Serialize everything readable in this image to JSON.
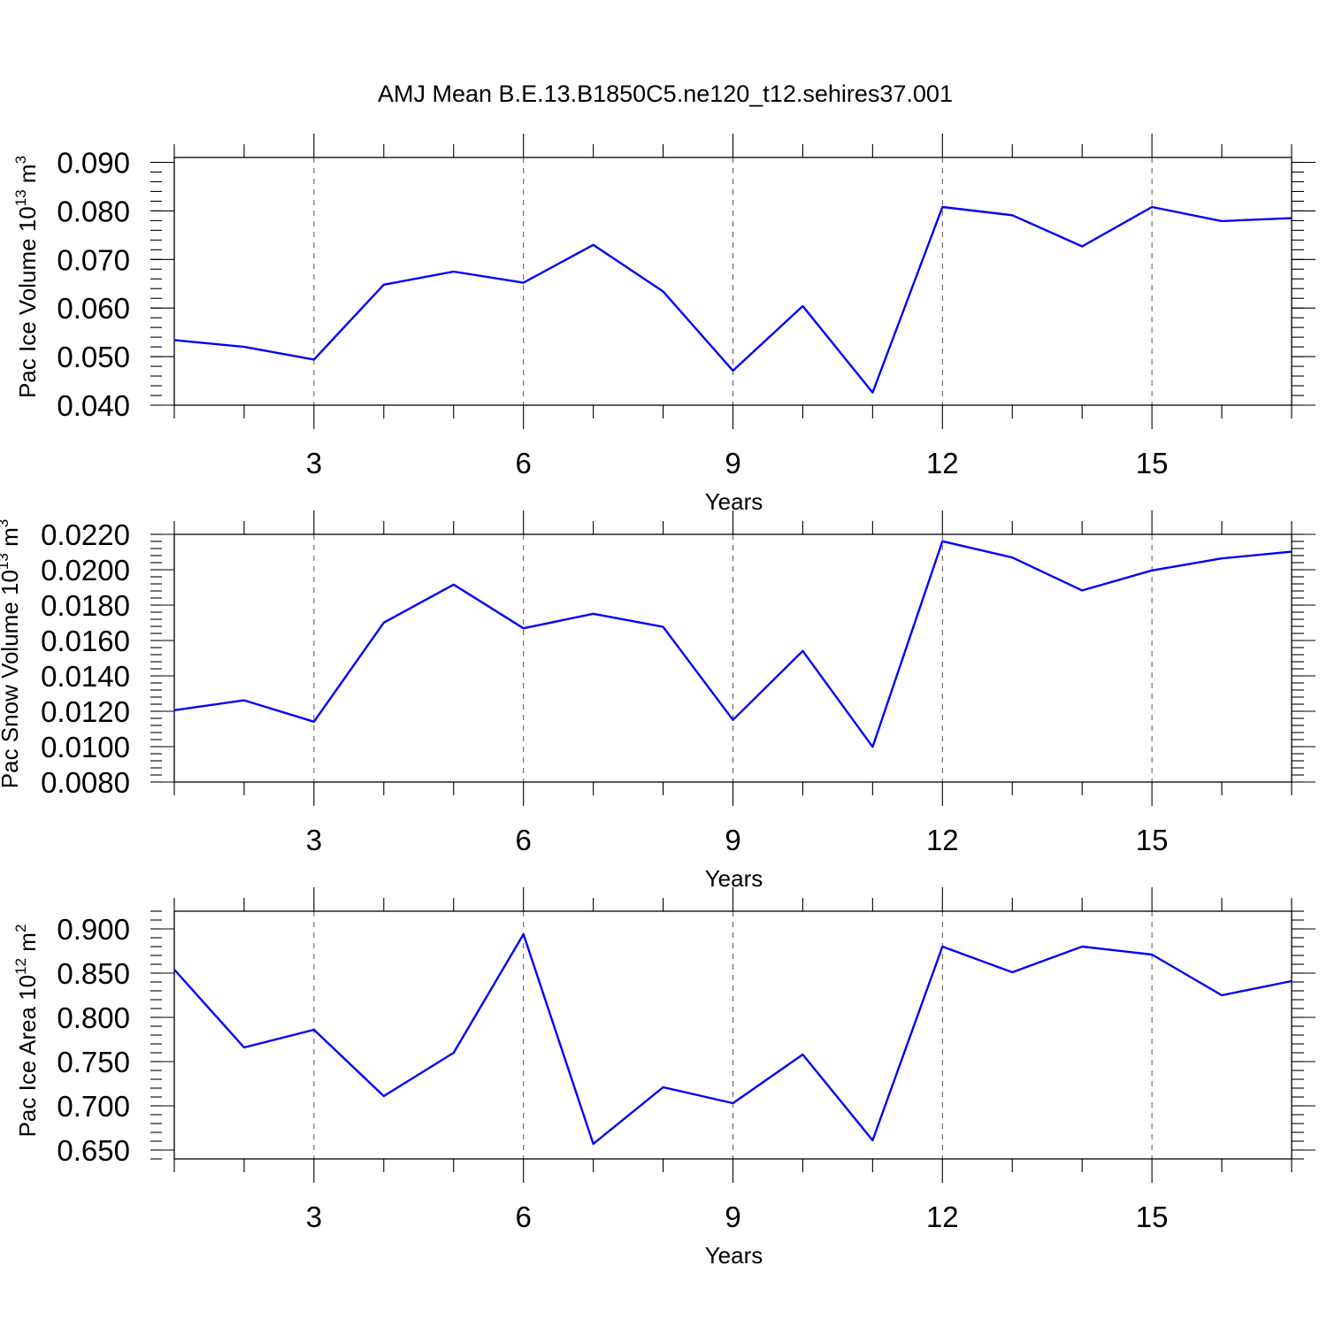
{
  "title": "AMJ Mean B.E.13.B1850C5.ne120_t12.sehires37.001",
  "line_color": "#0000ff",
  "chart_data": [
    {
      "type": "line",
      "id": "ice-volume",
      "xlabel": "Years",
      "ylabel": {
        "text": "Pac Ice Volume 10",
        "exp": "13",
        "unit": " m",
        "unit_exp": "3"
      },
      "xlim": [
        1,
        17
      ],
      "ylim": [
        0.04,
        0.091
      ],
      "x_ticks": [
        3,
        6,
        9,
        12,
        15
      ],
      "x_tick_labels": [
        "3",
        "6",
        "9",
        "12",
        "15"
      ],
      "y_ticks": [
        0.04,
        0.05,
        0.06,
        0.07,
        0.08,
        0.09
      ],
      "y_tick_labels": [
        "0.040",
        "0.050",
        "0.060",
        "0.070",
        "0.080",
        "0.090"
      ],
      "y_minor_step": 0.002,
      "x": [
        1,
        2,
        3,
        4,
        5,
        6,
        7,
        8,
        9,
        10,
        11,
        12,
        13,
        14,
        15,
        16,
        17
      ],
      "series": [
        {
          "name": "Pac Ice Volume",
          "values": [
            0.0534,
            0.052,
            0.0494,
            0.0648,
            0.0675,
            0.0652,
            0.073,
            0.0634,
            0.0471,
            0.0604,
            0.0426,
            0.0808,
            0.0791,
            0.0727,
            0.0808,
            0.0779,
            0.0785
          ]
        }
      ]
    },
    {
      "type": "line",
      "id": "snow-volume",
      "xlabel": "Years",
      "ylabel": {
        "text": "Pac Snow Volume 10",
        "exp": "13",
        "unit": " m",
        "unit_exp": "3"
      },
      "xlim": [
        1,
        17
      ],
      "ylim": [
        0.008,
        0.022
      ],
      "x_ticks": [
        3,
        6,
        9,
        12,
        15
      ],
      "x_tick_labels": [
        "3",
        "6",
        "9",
        "12",
        "15"
      ],
      "y_ticks": [
        0.008,
        0.01,
        0.012,
        0.014,
        0.016,
        0.018,
        0.02,
        0.022
      ],
      "y_tick_labels": [
        "0.0080",
        "0.0100",
        "0.0120",
        "0.0140",
        "0.0160",
        "0.0180",
        "0.0200",
        "0.0220"
      ],
      "y_minor_step": 0.0004,
      "x": [
        1,
        2,
        3,
        4,
        5,
        6,
        7,
        8,
        9,
        10,
        11,
        12,
        13,
        14,
        15,
        16,
        17
      ],
      "series": [
        {
          "name": "Pac Snow Volume",
          "values": [
            0.01206,
            0.01262,
            0.01141,
            0.01701,
            0.01916,
            0.01669,
            0.01751,
            0.01677,
            0.01151,
            0.01541,
            0.00999,
            0.02161,
            0.02069,
            0.01883,
            0.01996,
            0.02064,
            0.02102
          ]
        }
      ]
    },
    {
      "type": "line",
      "id": "ice-area",
      "xlabel": "Years",
      "ylabel": {
        "text": "Pac Ice Area 10",
        "exp": "12",
        "unit": " m",
        "unit_exp": "2"
      },
      "xlim": [
        1,
        17
      ],
      "ylim": [
        0.64,
        0.92
      ],
      "x_ticks": [
        3,
        6,
        9,
        12,
        15
      ],
      "x_tick_labels": [
        "3",
        "6",
        "9",
        "12",
        "15"
      ],
      "y_ticks": [
        0.65,
        0.7,
        0.75,
        0.8,
        0.85,
        0.9
      ],
      "y_tick_labels": [
        "0.650",
        "0.700",
        "0.750",
        "0.800",
        "0.850",
        "0.900"
      ],
      "y_minor_step": 0.01,
      "x": [
        1,
        2,
        3,
        4,
        5,
        6,
        7,
        8,
        9,
        10,
        11,
        12,
        13,
        14,
        15,
        16,
        17
      ],
      "series": [
        {
          "name": "Pac Ice Area",
          "values": [
            0.854,
            0.766,
            0.786,
            0.711,
            0.76,
            0.894,
            0.657,
            0.721,
            0.703,
            0.758,
            0.661,
            0.88,
            0.851,
            0.88,
            0.871,
            0.825,
            0.841
          ]
        }
      ]
    }
  ]
}
